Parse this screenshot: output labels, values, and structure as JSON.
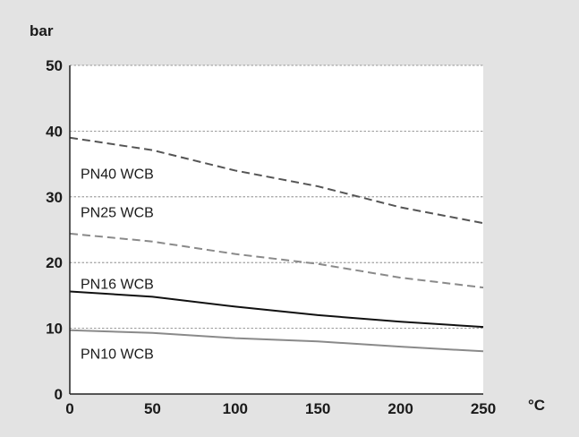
{
  "chart_data": {
    "type": "line",
    "title": "",
    "ylabel": "bar",
    "xlabel": "°C",
    "xlim": [
      0,
      250
    ],
    "ylim": [
      0,
      50
    ],
    "xticks": [
      0,
      50,
      100,
      150,
      200,
      250
    ],
    "yticks": [
      0,
      10,
      20,
      30,
      40,
      50
    ],
    "grid": "horizontal dashed",
    "series": [
      {
        "name": "PN40 WCB",
        "style": "dashed",
        "color": "#555555",
        "x": [
          0,
          50,
          100,
          150,
          200,
          250
        ],
        "y": [
          39,
          37.1,
          34,
          31.6,
          28.4,
          26
        ]
      },
      {
        "name": "PN25 WCB",
        "style": "dashed",
        "color": "#8a8a8a",
        "x": [
          0,
          50,
          100,
          150,
          200,
          250
        ],
        "y": [
          24.4,
          23.2,
          21.3,
          19.8,
          17.7,
          16.2
        ]
      },
      {
        "name": "PN16 WCB",
        "style": "solid",
        "color": "#111111",
        "x": [
          0,
          50,
          100,
          150,
          200,
          250
        ],
        "y": [
          15.6,
          14.8,
          13.3,
          12,
          11,
          10.2
        ]
      },
      {
        "name": "PN10 WCB",
        "style": "solid",
        "color": "#8a8a8a",
        "x": [
          0,
          50,
          100,
          150,
          200,
          250
        ],
        "y": [
          9.7,
          9.3,
          8.5,
          8,
          7.2,
          6.5
        ]
      }
    ]
  }
}
